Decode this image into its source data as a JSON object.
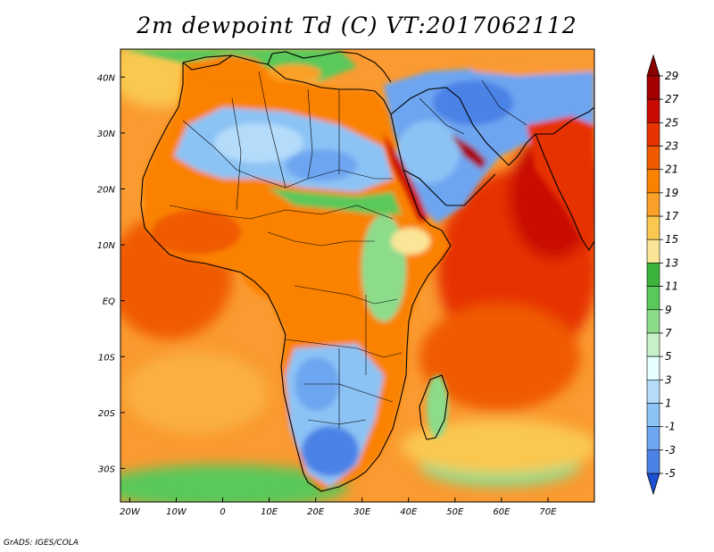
{
  "title": "2m dewpoint Td (C) VT:2017062112",
  "credit": "GrADS: IGES/COLA",
  "map": {
    "lon_range": [
      -22,
      80
    ],
    "lat_range": [
      -36,
      45
    ],
    "lon_ticks": [
      {
        "lon": -20,
        "label": "20W"
      },
      {
        "lon": -10,
        "label": "10W"
      },
      {
        "lon": 0,
        "label": "0"
      },
      {
        "lon": 10,
        "label": "10E"
      },
      {
        "lon": 20,
        "label": "20E"
      },
      {
        "lon": 30,
        "label": "30E"
      },
      {
        "lon": 40,
        "label": "40E"
      },
      {
        "lon": 50,
        "label": "50E"
      },
      {
        "lon": 60,
        "label": "60E"
      },
      {
        "lon": 70,
        "label": "70E"
      }
    ],
    "lat_ticks": [
      {
        "lat": 40,
        "label": "40N"
      },
      {
        "lat": 30,
        "label": "30N"
      },
      {
        "lat": 20,
        "label": "20N"
      },
      {
        "lat": 10,
        "label": "10N"
      },
      {
        "lat": 0,
        "label": "EQ"
      },
      {
        "lat": -10,
        "label": "10S"
      },
      {
        "lat": -20,
        "label": "20S"
      },
      {
        "lat": -30,
        "label": "30S"
      }
    ]
  },
  "colorbar": {
    "levels": [
      {
        "label": "29",
        "color": "#a50000"
      },
      {
        "label": "27",
        "color": "#c80a00"
      },
      {
        "label": "25",
        "color": "#e63200"
      },
      {
        "label": "23",
        "color": "#f05a00"
      },
      {
        "label": "21",
        "color": "#fa8200"
      },
      {
        "label": "19",
        "color": "#faa028"
      },
      {
        "label": "17",
        "color": "#fac850"
      },
      {
        "label": "15",
        "color": "#fae696"
      },
      {
        "label": "13",
        "color": "#3cb43c"
      },
      {
        "label": "11",
        "color": "#5ac85a"
      },
      {
        "label": "9",
        "color": "#8cdc8c"
      },
      {
        "label": "7",
        "color": "#c8f0c8"
      },
      {
        "label": "5",
        "color": "#e6ffff"
      },
      {
        "label": "3",
        "color": "#b4dcfa"
      },
      {
        "label": "1",
        "color": "#8cc3f5"
      },
      {
        "label": "-1",
        "color": "#6ea5f0"
      },
      {
        "label": "-3",
        "color": "#4b82e6"
      },
      {
        "label": "-5",
        "color": "#2864dc"
      }
    ],
    "top_color": "#8c0000",
    "bottom_color": "#1e50d2"
  }
}
